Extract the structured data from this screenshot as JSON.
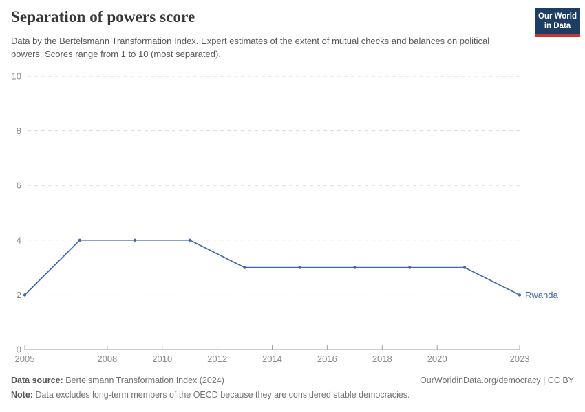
{
  "header": {
    "title": "Separation of powers score",
    "subtitle": "Data by the Bertelsmann Transformation Index. Expert estimates of the extent of mutual checks and balances on political powers. Scores range from 1 to 10 (most separated).",
    "logo_line1": "Our World",
    "logo_line2": "in Data"
  },
  "chart_data": {
    "type": "line",
    "title": "Separation of powers score",
    "xlabel": "",
    "ylabel": "",
    "xlim": [
      2005,
      2023
    ],
    "ylim": [
      0,
      10
    ],
    "grid": "horizontal-dashed",
    "legend": "inline-entity-label-at-line-end",
    "xticks": [
      2005,
      2008,
      2010,
      2012,
      2014,
      2016,
      2018,
      2020,
      2023
    ],
    "yticks": [
      0,
      2,
      4,
      6,
      8,
      10
    ],
    "series": [
      {
        "name": "Rwanda",
        "x": [
          2005,
          2007,
          2009,
          2011,
          2013,
          2015,
          2017,
          2019,
          2021,
          2023
        ],
        "values": [
          2,
          4,
          4,
          4,
          3,
          3,
          3,
          3,
          3,
          2
        ],
        "color": "#4368aa"
      }
    ],
    "colors": {
      "line": "#4368aa",
      "gridline": "#dadada",
      "axis": "#a3a3a3",
      "tick_label": "#8a8a8a"
    }
  },
  "footer": {
    "source_label": "Data source:",
    "source_value": "Bertelsmann Transformation Index (2024)",
    "rights": "OurWorldinData.org/democracy | CC BY",
    "note_label": "Note:",
    "note_value": "Data excludes long-term members of the OECD because they are considered stable democracies."
  }
}
